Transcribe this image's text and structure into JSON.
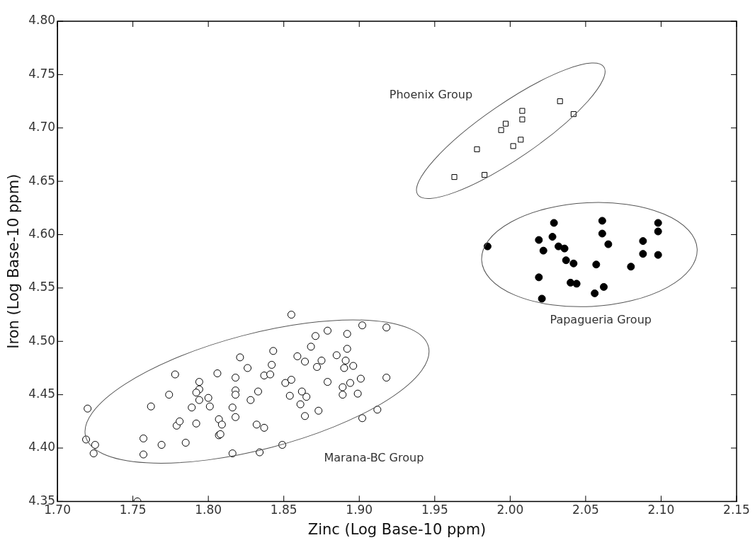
{
  "chart_data": {
    "type": "scatter",
    "xlabel": "Zinc (Log Base-10 ppm)",
    "ylabel": "Iron (Log Base-10 ppm)",
    "xlim": [
      1.7,
      2.15
    ],
    "ylim": [
      4.35,
      4.8
    ],
    "xticks": [
      {
        "value": 1.7,
        "label": "1.70"
      },
      {
        "value": 1.75,
        "label": "1.75"
      },
      {
        "value": 1.8,
        "label": "1.80"
      },
      {
        "value": 1.85,
        "label": "1.85"
      },
      {
        "value": 1.9,
        "label": "1.90"
      },
      {
        "value": 1.95,
        "label": "1.95"
      },
      {
        "value": 2.0,
        "label": "2.00"
      },
      {
        "value": 2.05,
        "label": "2.05"
      },
      {
        "value": 2.1,
        "label": "2.10"
      },
      {
        "value": 2.15,
        "label": "2.15"
      }
    ],
    "yticks": [
      {
        "value": 4.35,
        "label": "4.35"
      },
      {
        "value": 4.4,
        "label": "4.40"
      },
      {
        "value": 4.45,
        "label": "4.45"
      },
      {
        "value": 4.5,
        "label": "4.50"
      },
      {
        "value": 4.55,
        "label": "4.55"
      },
      {
        "value": 4.6,
        "label": "4.60"
      },
      {
        "value": 4.65,
        "label": "4.65"
      },
      {
        "value": 4.7,
        "label": "4.70"
      },
      {
        "value": 4.75,
        "label": "4.75"
      },
      {
        "value": 4.8,
        "label": "4.80"
      }
    ],
    "grid": false,
    "legend": false,
    "annotations": [
      "Phoenix Group",
      "Papagueria Group",
      "Marana-BC Group"
    ],
    "series": [
      {
        "marker": "square",
        "color": "#ffffff",
        "x": [
          1.963,
          1.983,
          1.978,
          1.994,
          1.997,
          2.002,
          2.007,
          2.008,
          2.008,
          2.033,
          2.042
        ],
        "values": [
          4.654,
          4.656,
          4.68,
          4.698,
          4.704,
          4.683,
          4.689,
          4.708,
          4.716,
          4.725,
          4.713
        ]
      },
      {
        "marker": "circle",
        "color": "#000000",
        "x": [
          1.985,
          2.019,
          2.022,
          2.029,
          2.028,
          2.032,
          2.036,
          2.037,
          2.042,
          2.019,
          2.021,
          2.04,
          2.044,
          2.056,
          2.062,
          2.057,
          2.061,
          2.061,
          2.065,
          2.08,
          2.088,
          2.088,
          2.098,
          2.098,
          2.098
        ],
        "values": [
          4.589,
          4.595,
          4.585,
          4.611,
          4.598,
          4.589,
          4.587,
          4.576,
          4.573,
          4.56,
          4.54,
          4.555,
          4.554,
          4.545,
          4.551,
          4.572,
          4.613,
          4.601,
          4.591,
          4.57,
          4.594,
          4.582,
          4.611,
          4.603,
          4.581
        ]
      },
      {
        "marker": "circle",
        "color": "#ffffff",
        "x": [
          1.72,
          1.719,
          1.725,
          1.724,
          1.757,
          1.757,
          1.762,
          1.769,
          1.774,
          1.778,
          1.779,
          1.781,
          1.785,
          1.789,
          1.792,
          1.794,
          1.794,
          1.792,
          1.794,
          1.8,
          1.801,
          1.806,
          1.807,
          1.809,
          1.807,
          1.808,
          1.816,
          1.816,
          1.818,
          1.818,
          1.818,
          1.818,
          1.821,
          1.826,
          1.828,
          1.833,
          1.832,
          1.837,
          1.834,
          1.837,
          1.841,
          1.842,
          1.843,
          1.753,
          1.855,
          1.849,
          1.851,
          1.855,
          1.854,
          1.859,
          1.864,
          1.862,
          1.865,
          1.861,
          1.864,
          1.868,
          1.871,
          1.873,
          1.872,
          1.875,
          1.879,
          1.879,
          1.885,
          1.892,
          1.892,
          1.891,
          1.89,
          1.896,
          1.889,
          1.894,
          1.889,
          1.899,
          1.901,
          1.902,
          1.918,
          1.918,
          1.902,
          1.912
        ],
        "values": [
          4.437,
          4.408,
          4.403,
          4.395,
          4.409,
          4.394,
          4.439,
          4.403,
          4.45,
          4.469,
          4.421,
          4.425,
          4.405,
          4.438,
          4.423,
          4.462,
          4.455,
          4.452,
          4.445,
          4.447,
          4.439,
          4.47,
          4.427,
          4.422,
          4.412,
          4.413,
          4.438,
          4.395,
          4.466,
          4.454,
          4.45,
          4.429,
          4.485,
          4.475,
          4.445,
          4.453,
          4.422,
          4.419,
          4.396,
          4.468,
          4.469,
          4.478,
          4.491,
          4.35,
          4.525,
          4.403,
          4.461,
          4.464,
          4.449,
          4.486,
          4.481,
          4.453,
          4.448,
          4.441,
          4.43,
          4.495,
          4.505,
          4.435,
          4.476,
          4.482,
          4.51,
          4.462,
          4.487,
          4.507,
          4.493,
          4.482,
          4.475,
          4.477,
          4.457,
          4.461,
          4.45,
          4.451,
          4.465,
          4.515,
          4.513,
          4.466,
          4.428,
          4.436
        ]
      }
    ]
  }
}
